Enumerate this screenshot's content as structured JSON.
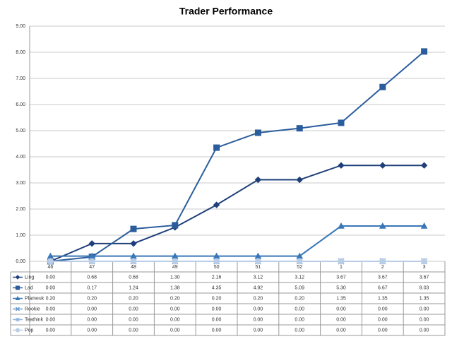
{
  "chart_data": {
    "type": "line",
    "title": "Trader Performance",
    "categories": [
      "46",
      "47",
      "48",
      "49",
      "50",
      "51",
      "52",
      "1",
      "2",
      "3"
    ],
    "ylim": [
      0,
      9
    ],
    "yticks": [
      {
        "value": 0,
        "label": "0.00"
      },
      {
        "value": 1,
        "label": "1.00"
      },
      {
        "value": 2,
        "label": "2.00"
      },
      {
        "value": 3,
        "label": "3.00"
      },
      {
        "value": 4,
        "label": "4.00"
      },
      {
        "value": 5,
        "label": "5.00"
      },
      {
        "value": 6,
        "label": "6.00"
      },
      {
        "value": 7,
        "label": "7.00"
      },
      {
        "value": 8,
        "label": "8.00"
      },
      {
        "value": 9,
        "label": "9.00"
      }
    ],
    "grid": true,
    "series": [
      {
        "name": "Ling",
        "color": "#1f3f7a",
        "marker": "diamond",
        "values": [
          0,
          0.68,
          0.68,
          1.3,
          2.16,
          3.12,
          3.12,
          3.67,
          3.67,
          3.67
        ],
        "value_labels": [
          "0.00",
          "0.68",
          "0.68",
          "1.30",
          "2.16",
          "3.12",
          "3.12",
          "3.67",
          "3.67",
          "3.67"
        ]
      },
      {
        "name": "Lad",
        "color": "#2b5d9c",
        "marker": "square",
        "values": [
          0,
          0.17,
          1.24,
          1.38,
          4.35,
          4.92,
          5.09,
          5.3,
          6.67,
          8.03
        ],
        "value_labels": [
          "0.00",
          "0.17",
          "1.24",
          "1.38",
          "4.35",
          "4.92",
          "5.09",
          "5.30",
          "6.67",
          "8.03"
        ]
      },
      {
        "name": "Plameuk",
        "color": "#3877b8",
        "marker": "triangle",
        "values": [
          0.2,
          0.2,
          0.2,
          0.2,
          0.2,
          0.2,
          0.2,
          1.35,
          1.35,
          1.35
        ],
        "value_labels": [
          "0.20",
          "0.20",
          "0.20",
          "0.20",
          "0.20",
          "0.20",
          "0.20",
          "1.35",
          "1.35",
          "1.35"
        ]
      },
      {
        "name": "Rookie",
        "color": "#6b9bd1",
        "marker": "x",
        "values": [
          0,
          0,
          0,
          0,
          0,
          0,
          0,
          0,
          0,
          0
        ],
        "value_labels": [
          "0.00",
          "0.00",
          "0.00",
          "0.00",
          "0.00",
          "0.00",
          "0.00",
          "0.00",
          "0.00",
          "0.00"
        ]
      },
      {
        "name": "Teathink",
        "color": "#8fb4e0",
        "marker": "star",
        "values": [
          0,
          0,
          0,
          0,
          0,
          0,
          0,
          0,
          0,
          0
        ],
        "value_labels": [
          "0.00",
          "0.00",
          "0.00",
          "0.00",
          "0.00",
          "0.00",
          "0.00",
          "0.00",
          "0.00",
          "0.00"
        ]
      },
      {
        "name": "Pop",
        "color": "#b9cde6",
        "marker": "circle",
        "values": [
          0,
          0,
          0,
          0,
          0,
          0,
          0,
          0,
          0,
          0
        ],
        "value_labels": [
          "0.00",
          "0.00",
          "0.00",
          "0.00",
          "0.00",
          "0.00",
          "0.00",
          "0.00",
          "0.00",
          "0.00"
        ]
      }
    ]
  }
}
